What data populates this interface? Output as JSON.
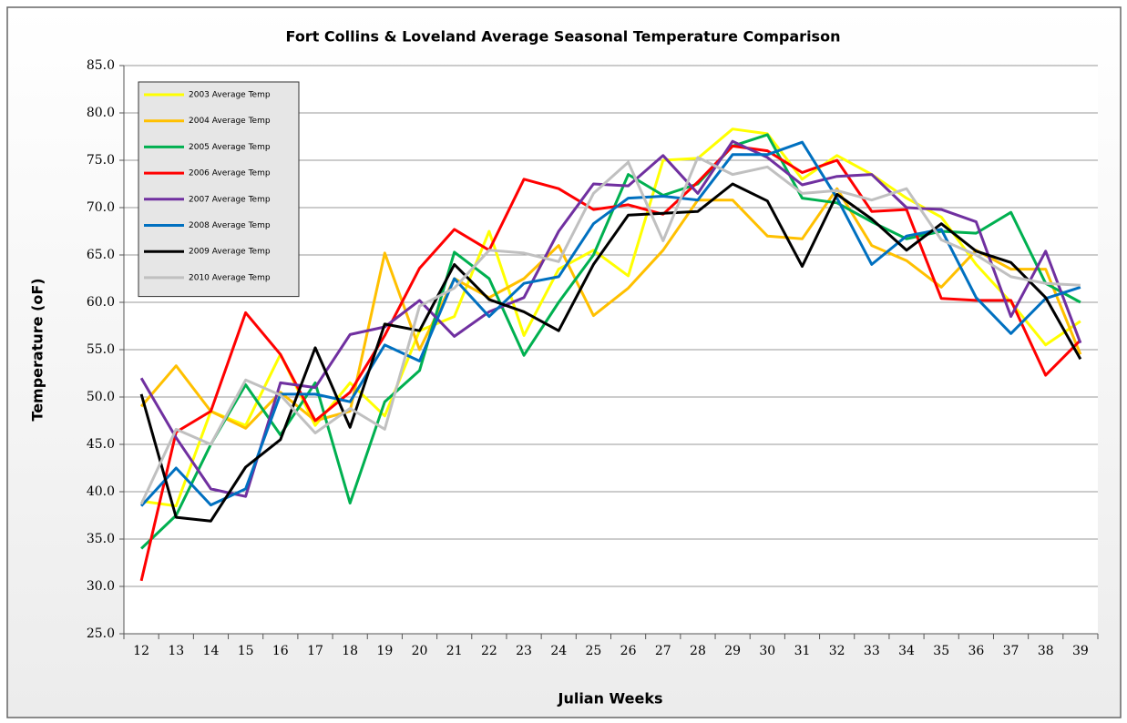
{
  "chart_data": {
    "type": "line",
    "title": "Fort Collins & Loveland Average Seasonal Temperature Comparison",
    "x_label": "Julian Weeks",
    "y_label": "Temperature (oF)",
    "categories": [
      12,
      13,
      14,
      15,
      16,
      17,
      18,
      19,
      20,
      21,
      22,
      23,
      24,
      25,
      26,
      27,
      28,
      29,
      30,
      31,
      32,
      33,
      34,
      35,
      36,
      37,
      38,
      39
    ],
    "ylim": [
      25,
      85
    ],
    "yticks": [
      {
        "value": 25,
        "label": "25.0"
      },
      {
        "value": 30,
        "label": "30.0"
      },
      {
        "value": 35,
        "label": "35.0"
      },
      {
        "value": 40,
        "label": "40.0"
      },
      {
        "value": 45,
        "label": "45.0"
      },
      {
        "value": 50,
        "label": "50.0"
      },
      {
        "value": 55,
        "label": "55.0"
      },
      {
        "value": 60,
        "label": "60.0"
      },
      {
        "value": 65,
        "label": "65.0"
      },
      {
        "value": 70,
        "label": "70.0"
      },
      {
        "value": 75,
        "label": "75.0"
      },
      {
        "value": 80,
        "label": "80.0"
      },
      {
        "value": 85,
        "label": "85.0"
      }
    ],
    "grid": true,
    "legend": "upper-left",
    "series": [
      {
        "name": "2003 Average Temp",
        "color": "#ffff00",
        "values": [
          39,
          38.5,
          48.5,
          47,
          54.5,
          47,
          51.5,
          48,
          57,
          58.5,
          67.5,
          56.5,
          63.5,
          65.5,
          62.8,
          75,
          75.2,
          78.3,
          77.8,
          73,
          75.5,
          73.5,
          71,
          69,
          64,
          60,
          55.5,
          58
        ]
      },
      {
        "name": "2004 Average Temp",
        "color": "#ffc000",
        "values": [
          49,
          53.3,
          48.5,
          46.7,
          50.5,
          47.5,
          48.5,
          65.2,
          55,
          62.5,
          60.5,
          62.5,
          66,
          58.6,
          61.5,
          65.5,
          70.8,
          70.8,
          67,
          66.7,
          72,
          66,
          64.4,
          61.6,
          65.5,
          63.5,
          63.5,
          54.5
        ]
      },
      {
        "name": "2005 Average Temp",
        "color": "#00b050",
        "values": [
          34,
          37.5,
          45,
          51.3,
          46,
          51.5,
          38.8,
          49.5,
          52.8,
          65.3,
          62.5,
          54.4,
          60,
          65,
          73.5,
          71.3,
          72.5,
          76.5,
          77.7,
          71,
          70.5,
          68.5,
          66.7,
          67.5,
          67.3,
          69.5,
          62,
          60
        ]
      },
      {
        "name": "2006 Average Temp",
        "color": "#ff0000",
        "values": [
          30.6,
          46.3,
          48.5,
          58.9,
          54.5,
          47.5,
          50.5,
          56.5,
          63.6,
          67.7,
          65.5,
          73,
          72,
          69.8,
          70.3,
          69.3,
          72.7,
          76.5,
          76,
          73.7,
          75,
          69.6,
          69.8,
          60.4,
          60.2,
          60.2,
          52.3,
          56
        ]
      },
      {
        "name": "2007 Average Temp",
        "color": "#7030a0",
        "values": [
          52,
          45.7,
          40.3,
          39.5,
          51.5,
          51,
          56.6,
          57.4,
          60.2,
          56.4,
          59,
          60.5,
          67.5,
          72.5,
          72.3,
          75.5,
          71.5,
          77,
          75.3,
          72.4,
          73.3,
          73.5,
          70,
          69.8,
          68.5,
          58.5,
          65.4,
          55.7
        ]
      },
      {
        "name": "2008 Average Temp",
        "color": "#0070c0",
        "values": [
          38.5,
          42.5,
          38.6,
          40.3,
          50.3,
          50.3,
          49.5,
          55.5,
          53.8,
          62.5,
          58.5,
          62,
          62.7,
          68.3,
          71,
          71.2,
          70.8,
          75.6,
          75.6,
          76.9,
          71,
          64,
          67,
          67.7,
          60.5,
          56.7,
          60.4,
          61.6
        ]
      },
      {
        "name": "2009 Average Temp",
        "color": "#000000",
        "values": [
          50.3,
          37.3,
          36.9,
          42.6,
          45.5,
          55.2,
          46.8,
          57.7,
          57,
          64,
          60.3,
          59,
          57,
          64,
          69.2,
          69.4,
          69.6,
          72.5,
          70.7,
          63.8,
          71.4,
          68.8,
          65.5,
          68.3,
          65.4,
          64.2,
          60.5,
          54
        ]
      },
      {
        "name": "2010 Average Temp",
        "color": "#c0c0c0",
        "values": [
          38.7,
          46.6,
          45,
          51.8,
          50.2,
          46.2,
          48.8,
          46.6,
          59.6,
          61.5,
          65.5,
          65.2,
          64.3,
          71.5,
          74.8,
          66.5,
          75.3,
          73.5,
          74.3,
          71.5,
          71.8,
          70.8,
          72,
          66.6,
          65,
          62.7,
          62,
          61.8
        ]
      }
    ]
  }
}
